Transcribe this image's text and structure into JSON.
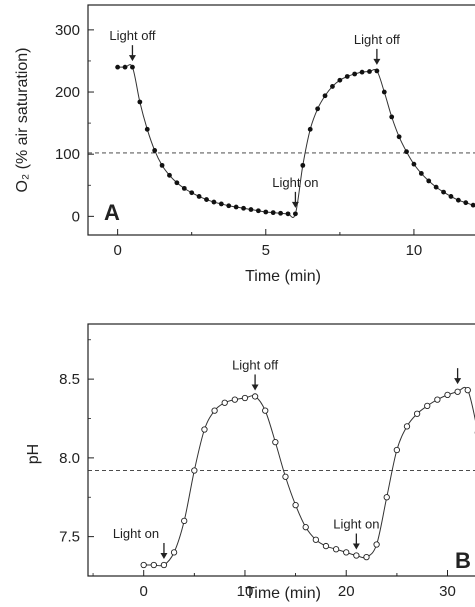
{
  "chart_data": [
    {
      "type": "line",
      "panel_label": "A",
      "xlabel": "Time (min)",
      "ylabel": "O₂ (% air saturation)",
      "xlim": [
        -1,
        12.5
      ],
      "ylim": [
        -30,
        340
      ],
      "xticks": [
        0,
        5,
        10
      ],
      "yticks": [
        0,
        100,
        200,
        300
      ],
      "reference_line": 102,
      "marker": "filled-circle",
      "series": [
        {
          "x": [
            0.0,
            0.25,
            0.5,
            0.75,
            1.0,
            1.25,
            1.5,
            1.75,
            2.0,
            2.25,
            2.5,
            2.75,
            3.0,
            3.25,
            3.5,
            3.75,
            4.0,
            4.25,
            4.5,
            4.75,
            5.0,
            5.25,
            5.5,
            5.75,
            6.0,
            6.25,
            6.5,
            6.75,
            7.0,
            7.25,
            7.5,
            7.75,
            8.0,
            8.25,
            8.5,
            8.75,
            9.0,
            9.25,
            9.5,
            9.75,
            10.0,
            10.25,
            10.5,
            10.75,
            11.0,
            11.25,
            11.5,
            11.75,
            12.0,
            12.25
          ],
          "y": [
            240,
            240,
            240,
            184,
            140,
            106,
            82,
            66,
            54,
            45,
            38,
            32,
            27,
            23,
            20,
            17,
            15,
            13,
            11,
            9,
            7,
            6,
            5,
            4,
            4,
            82,
            140,
            173,
            194,
            209,
            219,
            225,
            229,
            232,
            233,
            234,
            200,
            160,
            128,
            104,
            84,
            69,
            57,
            47,
            39,
            32,
            26,
            22,
            18,
            15
          ]
        }
      ],
      "annotations": [
        {
          "text": "Light off",
          "x": 0.5,
          "y": 240
        },
        {
          "text": "Light on",
          "x": 6.0,
          "y": 4
        },
        {
          "text": "Light off",
          "x": 8.75,
          "y": 234
        }
      ]
    },
    {
      "type": "line",
      "panel_label": "B",
      "xlabel": "Time (min)",
      "ylabel": "pH",
      "xlim": [
        -5.5,
        34
      ],
      "ylim": [
        7.25,
        8.85
      ],
      "xticks": [
        0,
        10,
        20,
        30
      ],
      "yticks": [
        7.5,
        8.0,
        8.5
      ],
      "reference_line": 7.92,
      "marker": "open-circle",
      "series": [
        {
          "x": [
            0,
            1,
            2,
            3,
            4,
            5,
            6,
            7,
            8,
            9,
            10,
            11,
            12,
            13,
            14,
            15,
            16,
            17,
            18,
            19,
            20,
            21,
            22,
            23,
            24,
            25,
            26,
            27,
            28,
            29,
            30,
            31,
            32,
            33,
            34
          ],
          "y": [
            7.32,
            7.32,
            7.32,
            7.4,
            7.6,
            7.92,
            8.18,
            8.3,
            8.35,
            8.37,
            8.38,
            8.39,
            8.3,
            8.1,
            7.88,
            7.7,
            7.56,
            7.48,
            7.44,
            7.42,
            7.4,
            7.38,
            7.37,
            7.45,
            7.75,
            8.05,
            8.2,
            8.28,
            8.33,
            8.37,
            8.4,
            8.42,
            8.43,
            8.16,
            7.8
          ]
        }
      ],
      "annotations": [
        {
          "text": "Light on",
          "x": 2,
          "y": 7.32
        },
        {
          "text": "Light off",
          "x": 11,
          "y": 8.39
        },
        {
          "text": "Light on",
          "x": 21,
          "y": 7.38
        },
        {
          "text": "",
          "x": 31,
          "y": 8.43
        }
      ]
    }
  ]
}
